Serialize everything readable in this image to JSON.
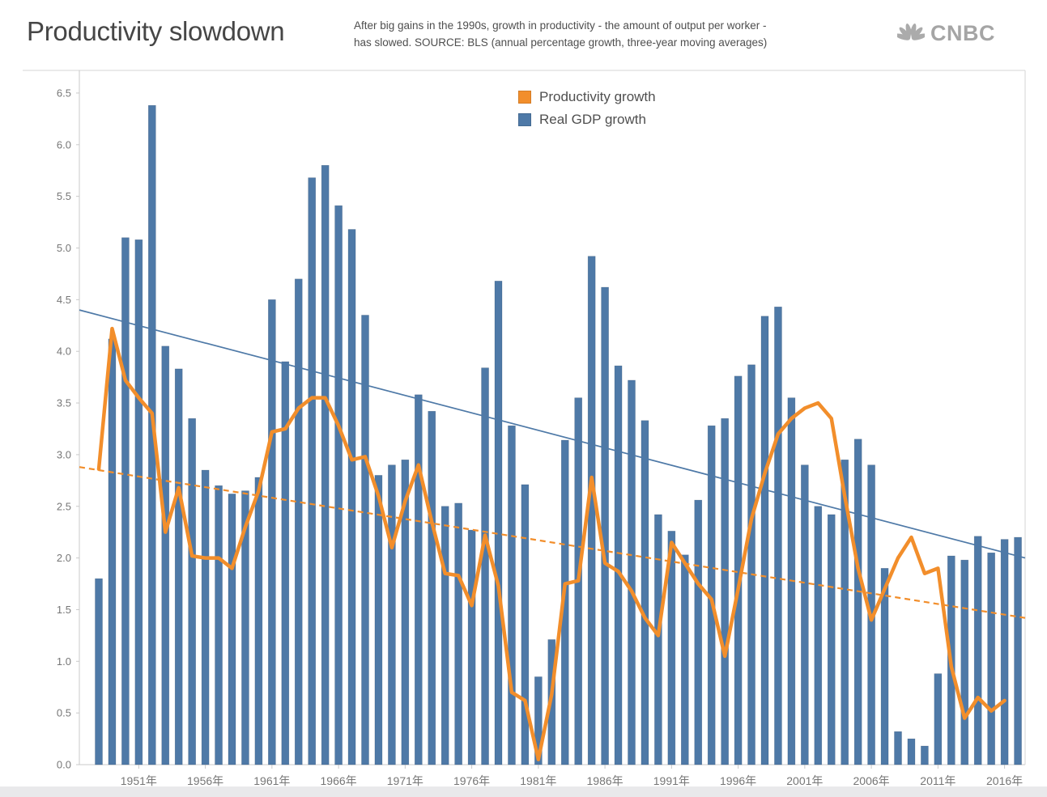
{
  "header": {
    "title": "Productivity slowdown",
    "subtitle_line1": "After big gains in the 1990s, growth in productivity - the amount of output per worker -",
    "subtitle_line2": "has slowed.  SOURCE: BLS (annual percentage growth, three-year moving averages)",
    "logo_text": "CNBC"
  },
  "legend": {
    "items": [
      {
        "label": "Productivity growth",
        "color": "#f28e2b"
      },
      {
        "label": "Real GDP growth",
        "color": "#4e79a7"
      }
    ]
  },
  "chart_data": {
    "type": "combo",
    "title": "Productivity slowdown",
    "x_label_suffix": "年",
    "years": [
      1948,
      1949,
      1950,
      1951,
      1952,
      1953,
      1954,
      1955,
      1956,
      1957,
      1958,
      1959,
      1960,
      1961,
      1962,
      1963,
      1964,
      1965,
      1966,
      1967,
      1968,
      1969,
      1970,
      1971,
      1972,
      1973,
      1974,
      1975,
      1976,
      1977,
      1978,
      1979,
      1980,
      1981,
      1982,
      1983,
      1984,
      1985,
      1986,
      1987,
      1988,
      1989,
      1990,
      1991,
      1992,
      1993,
      1994,
      1995,
      1996,
      1997,
      1998,
      1999,
      2000,
      2001,
      2002,
      2003,
      2004,
      2005,
      2006,
      2007,
      2008,
      2009,
      2010,
      2011,
      2012,
      2013,
      2014,
      2015,
      2016,
      2017
    ],
    "series": [
      {
        "name": "Real GDP growth",
        "type": "bar",
        "color": "#4e79a7",
        "values": [
          1.8,
          4.12,
          5.1,
          5.08,
          6.38,
          4.05,
          3.83,
          3.35,
          2.85,
          2.7,
          2.62,
          2.65,
          2.78,
          4.5,
          3.9,
          4.7,
          5.68,
          5.8,
          5.41,
          5.18,
          4.35,
          2.8,
          2.9,
          2.95,
          3.58,
          3.42,
          2.5,
          2.53,
          2.27,
          3.84,
          4.68,
          3.28,
          2.71,
          0.85,
          1.21,
          3.14,
          3.55,
          4.92,
          4.62,
          3.86,
          3.72,
          3.33,
          2.42,
          2.26,
          2.03,
          2.56,
          3.28,
          3.35,
          3.76,
          3.87,
          4.34,
          4.43,
          3.55,
          2.9,
          2.5,
          2.42,
          2.95,
          3.15,
          2.9,
          1.9,
          0.32,
          0.25,
          0.18,
          0.88,
          2.02,
          1.98,
          2.21,
          2.05,
          2.18,
          2.2
        ]
      },
      {
        "name": "Productivity growth",
        "type": "line",
        "color": "#f28e2b",
        "values": [
          2.86,
          4.22,
          3.72,
          3.55,
          3.4,
          2.25,
          2.68,
          2.02,
          2.0,
          2.0,
          1.9,
          2.3,
          2.65,
          3.22,
          3.25,
          3.45,
          3.55,
          3.55,
          3.28,
          2.95,
          2.98,
          2.6,
          2.1,
          2.55,
          2.9,
          2.35,
          1.85,
          1.83,
          1.54,
          2.22,
          1.73,
          0.7,
          0.62,
          0.05,
          0.68,
          1.75,
          1.78,
          2.78,
          1.95,
          1.87,
          1.68,
          1.42,
          1.25,
          2.15,
          1.95,
          1.75,
          1.6,
          1.05,
          1.7,
          2.38,
          2.82,
          3.2,
          3.35,
          3.45,
          3.5,
          3.35,
          2.6,
          1.9,
          1.4,
          1.7,
          2.0,
          2.2,
          1.85,
          1.9,
          0.95,
          0.45,
          0.65,
          0.52,
          0.62,
          null
        ]
      }
    ],
    "trendlines": [
      {
        "for_series": "Real GDP growth",
        "style": "solid",
        "color": "#4e79a7",
        "start_value": 4.4,
        "end_value": 2.0
      },
      {
        "for_series": "Productivity growth",
        "style": "dashed",
        "color": "#f28e2b",
        "start_value": 2.88,
        "end_value": 1.42
      }
    ],
    "ylim": [
      0,
      6.5
    ],
    "ytick_step": 0.5,
    "ytick_labels": [
      "0.0",
      "0.5",
      "1.0",
      "1.5",
      "2.0",
      "2.5",
      "3.0",
      "3.5",
      "4.0",
      "4.5",
      "5.0",
      "5.5",
      "6.0",
      "6.5"
    ],
    "xtick_years": [
      1951,
      1956,
      1961,
      1966,
      1971,
      1976,
      1981,
      1986,
      1991,
      1996,
      2001,
      2006,
      2011,
      2016
    ],
    "grid": "off",
    "legend_position": "top-center"
  }
}
